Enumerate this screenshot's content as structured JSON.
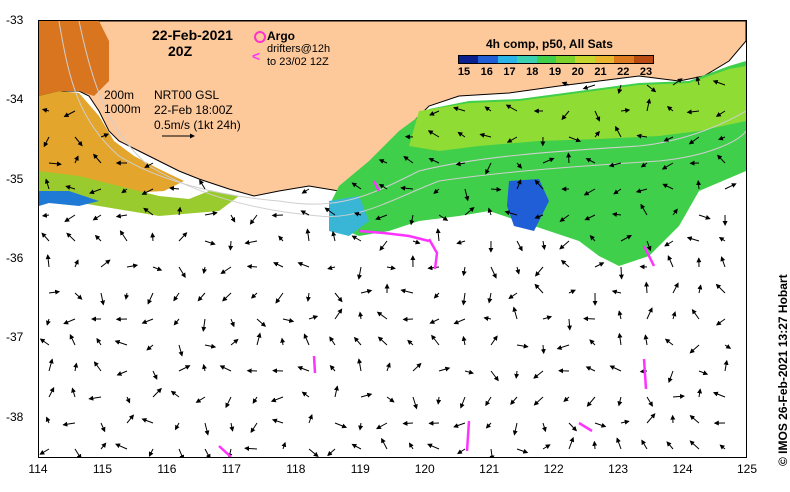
{
  "map": {
    "date_title": "22-Feb-2021",
    "time_title": "20Z",
    "argo_label": "Argo",
    "drifter_line1": "drifters@12h",
    "drifter_line2": "to 23/02 12Z",
    "depth_label_200": "200m",
    "depth_label_1000": "1000m",
    "product_line1": "NRT00 GSL",
    "product_line2": "22-Feb 18:00Z",
    "scale_label": "0.5m/s (1kt 24h)",
    "colorbar_title": "4h comp, p50, All Sats",
    "colorbar_ticks": [
      "15",
      "16",
      "17",
      "18",
      "19",
      "20",
      "21",
      "22",
      "23"
    ],
    "credit": "© IMOS 26-Feb-2021 13:27 Hobart",
    "lon_ticks": [
      "114",
      "115",
      "116",
      "117",
      "118",
      "119",
      "120",
      "121",
      "122",
      "123",
      "124",
      "125"
    ],
    "lat_ticks": [
      "-33",
      "-34",
      "-35",
      "-36",
      "-37",
      "-38"
    ],
    "lon_range": [
      114,
      125
    ],
    "lat_range": [
      -38.5,
      -33
    ],
    "colors": {
      "land": "#fdc99b",
      "argo": "#ff33cc",
      "drifter": "#ff33ff",
      "colorbar": [
        "#0a1f8f",
        "#1f5ed6",
        "#2ab3e6",
        "#39d1b1",
        "#3fcf4a",
        "#7ed32a",
        "#c6d52b",
        "#e8b52c",
        "#dd7a1f",
        "#b84a12"
      ]
    }
  }
}
